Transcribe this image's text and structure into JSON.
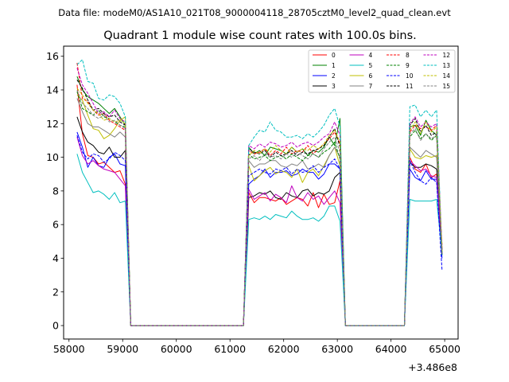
{
  "suptitle": "Data file: modeM0/AS1A10_021T08_9000004118_28705cztM0_level2_quad_clean.evt",
  "title": "Quadrant 1 module wise count rates with 100.0s bins.",
  "offset_label": "+3.486e8",
  "chart_data": {
    "type": "line",
    "title": "Quadrant 1 module wise count rates with 100.0s bins.",
    "xlabel": "",
    "ylabel": "",
    "x_offset": 348600000,
    "xlim": [
      57900,
      65250
    ],
    "ylim": [
      -0.8,
      16.6
    ],
    "xticks": [
      58000,
      59000,
      60000,
      61000,
      62000,
      63000,
      64000,
      65000
    ],
    "yticks": [
      0,
      2,
      4,
      6,
      8,
      10,
      12,
      14,
      16
    ],
    "grid": false,
    "legend_position": "top-right",
    "legend_columns": 4,
    "x": [
      58150,
      58250,
      58350,
      58450,
      58550,
      58650,
      58750,
      58850,
      58950,
      59050,
      59150,
      59250,
      59350,
      59450,
      59550,
      59650,
      59750,
      59850,
      59950,
      60050,
      60150,
      60250,
      60350,
      60450,
      60550,
      60650,
      60750,
      60850,
      60950,
      61050,
      61150,
      61250,
      61350,
      61450,
      61550,
      61650,
      61750,
      61850,
      61950,
      62050,
      62150,
      62250,
      62350,
      62450,
      62550,
      62650,
      62750,
      62850,
      62950,
      63050,
      63150,
      63250,
      63350,
      63450,
      63550,
      63650,
      63750,
      63850,
      63950,
      64050,
      64150,
      64250,
      64350,
      64450,
      64550,
      64650,
      64750,
      64850,
      64950
    ],
    "segments": [
      {
        "start": 58150,
        "end": 59050,
        "active": true
      },
      {
        "start": 59150,
        "end": 61250,
        "active": false
      },
      {
        "start": 61350,
        "end": 63050,
        "active": true
      },
      {
        "start": 63150,
        "end": 64250,
        "active": false
      },
      {
        "start": 64350,
        "end": 64950,
        "active": true
      }
    ],
    "series": [
      {
        "name": "0",
        "color": "#ff0000",
        "dash": "solid",
        "values": [
          14.3,
          11.4,
          10.1,
          10.0,
          9.6,
          9.7,
          9.4,
          9.1,
          9.2,
          8.4,
          0,
          0,
          0,
          0,
          0,
          0,
          0,
          0,
          0,
          0,
          0,
          0,
          0,
          0,
          0,
          0,
          0,
          0,
          0,
          0,
          0,
          0,
          7.9,
          7.3,
          7.6,
          7.6,
          7.5,
          7.4,
          7.6,
          7.2,
          7.4,
          7.6,
          7.5,
          7.1,
          7.9,
          7.0,
          7.8,
          7.2,
          7.3,
          8.6,
          0,
          0,
          0,
          0,
          0,
          0,
          0,
          0,
          0,
          0,
          0,
          0,
          10.0,
          9.3,
          9.1,
          9.6,
          8.8,
          9.0,
          4.8
        ]
      },
      {
        "name": "1",
        "color": "#008000",
        "dash": "solid",
        "values": [
          14.8,
          14.0,
          13.6,
          13.4,
          13.2,
          12.9,
          12.6,
          12.9,
          12.4,
          11.9,
          0,
          0,
          0,
          0,
          0,
          0,
          0,
          0,
          0,
          0,
          0,
          0,
          0,
          0,
          0,
          0,
          0,
          0,
          0,
          0,
          0,
          0,
          10.6,
          10.2,
          10.4,
          10.1,
          10.6,
          10.5,
          10.4,
          10.2,
          10.6,
          10.3,
          10.5,
          10.1,
          10.4,
          10.3,
          10.6,
          11.2,
          10.7,
          12.3,
          0,
          0,
          0,
          0,
          0,
          0,
          0,
          0,
          0,
          0,
          0,
          0,
          11.8,
          11.9,
          11.3,
          12.2,
          11.6,
          11.3,
          4.5
        ]
      },
      {
        "name": "2",
        "color": "#0000ff",
        "dash": "solid",
        "values": [
          11.5,
          10.6,
          9.4,
          10.0,
          9.5,
          9.4,
          10.0,
          10.2,
          9.6,
          9.5,
          0,
          0,
          0,
          0,
          0,
          0,
          0,
          0,
          0,
          0,
          0,
          0,
          0,
          0,
          0,
          0,
          0,
          0,
          0,
          0,
          0,
          0,
          8.4,
          8.7,
          8.9,
          9.3,
          8.8,
          9.1,
          9.1,
          9.2,
          8.9,
          9.0,
          9.3,
          9.1,
          9.1,
          8.7,
          9.0,
          9.6,
          9.6,
          9.3,
          0,
          0,
          0,
          0,
          0,
          0,
          0,
          0,
          0,
          0,
          0,
          0,
          9.3,
          8.8,
          8.6,
          9.2,
          8.7,
          8.7,
          4.0
        ]
      },
      {
        "name": "3",
        "color": "#000000",
        "dash": "solid",
        "values": [
          12.4,
          11.5,
          10.9,
          10.7,
          10.3,
          10.2,
          10.6,
          10.0,
          10.0,
          10.4,
          0,
          0,
          0,
          0,
          0,
          0,
          0,
          0,
          0,
          0,
          0,
          0,
          0,
          0,
          0,
          0,
          0,
          0,
          0,
          0,
          0,
          0,
          7.6,
          7.7,
          7.9,
          7.8,
          8.0,
          7.6,
          7.5,
          7.9,
          7.7,
          7.6,
          8.0,
          8.1,
          7.7,
          7.9,
          7.8,
          8.0,
          8.8,
          9.1,
          0,
          0,
          0,
          0,
          0,
          0,
          0,
          0,
          0,
          0,
          0,
          0,
          9.7,
          9.4,
          9.4,
          9.6,
          9.5,
          9.3,
          4.2
        ]
      },
      {
        "name": "4",
        "color": "#bf00bf",
        "dash": "solid",
        "values": [
          11.2,
          10.1,
          9.6,
          9.8,
          9.5,
          9.3,
          9.2,
          9.1,
          8.7,
          8.3,
          0,
          0,
          0,
          0,
          0,
          0,
          0,
          0,
          0,
          0,
          0,
          0,
          0,
          0,
          0,
          0,
          0,
          0,
          0,
          0,
          0,
          0,
          8.1,
          7.5,
          7.7,
          7.9,
          7.4,
          7.8,
          7.6,
          7.3,
          8.3,
          7.6,
          7.4,
          7.9,
          7.5,
          7.7,
          7.2,
          7.6,
          8.0,
          7.3,
          0,
          0,
          0,
          0,
          0,
          0,
          0,
          0,
          0,
          0,
          0,
          0,
          9.8,
          9.5,
          9.2,
          9.3,
          8.9,
          8.8,
          4.5
        ]
      },
      {
        "name": "5",
        "color": "#00bfbf",
        "dash": "solid",
        "values": [
          10.2,
          9.1,
          8.5,
          7.9,
          8.0,
          7.8,
          7.5,
          7.9,
          7.3,
          7.4,
          0,
          0,
          0,
          0,
          0,
          0,
          0,
          0,
          0,
          0,
          0,
          0,
          0,
          0,
          0,
          0,
          0,
          0,
          0,
          0,
          0,
          0,
          6.3,
          6.4,
          6.3,
          6.5,
          6.3,
          6.6,
          6.5,
          6.4,
          6.8,
          6.5,
          6.3,
          6.3,
          6.4,
          6.2,
          6.5,
          7.1,
          7.1,
          6.2,
          0,
          0,
          0,
          0,
          0,
          0,
          0,
          0,
          0,
          0,
          0,
          0,
          7.5,
          7.4,
          7.4,
          7.4,
          7.4,
          7.5,
          4.3
        ]
      },
      {
        "name": "6",
        "color": "#bfbf00",
        "dash": "solid",
        "values": [
          13.7,
          13.4,
          12.5,
          11.7,
          11.6,
          11.1,
          11.3,
          11.7,
          12.2,
          12.4,
          0,
          0,
          0,
          0,
          0,
          0,
          0,
          0,
          0,
          0,
          0,
          0,
          0,
          0,
          0,
          0,
          0,
          0,
          0,
          0,
          0,
          0,
          9.5,
          8.6,
          8.9,
          9.2,
          9.4,
          9.0,
          9.2,
          9.1,
          8.8,
          9.3,
          8.5,
          9.1,
          9.3,
          8.9,
          9.5,
          10.1,
          10.6,
          9.5,
          0,
          0,
          0,
          0,
          0,
          0,
          0,
          0,
          0,
          0,
          0,
          0,
          10.5,
          10.0,
          9.9,
          10.1,
          10.0,
          10.1,
          4.8
        ]
      },
      {
        "name": "7",
        "color": "#808080",
        "dash": "solid",
        "values": [
          13.5,
          12.7,
          12.0,
          11.8,
          11.8,
          11.6,
          11.4,
          11.2,
          11.5,
          11.2,
          0,
          0,
          0,
          0,
          0,
          0,
          0,
          0,
          0,
          0,
          0,
          0,
          0,
          0,
          0,
          0,
          0,
          0,
          0,
          0,
          0,
          0,
          9.8,
          9.4,
          9.6,
          9.6,
          9.8,
          9.8,
          9.5,
          9.4,
          9.6,
          9.5,
          9.8,
          9.3,
          9.4,
          9.6,
          9.4,
          10.1,
          10.6,
          10.0,
          0,
          0,
          0,
          0,
          0,
          0,
          0,
          0,
          0,
          0,
          0,
          0,
          10.6,
          10.3,
          10.0,
          10.4,
          10.2,
          10.0,
          4.6
        ]
      },
      {
        "name": "8",
        "color": "#ff0000",
        "dash": "dashed",
        "values": [
          15.6,
          13.5,
          13.3,
          12.8,
          12.5,
          12.6,
          12.2,
          12.0,
          11.8,
          11.6,
          0,
          0,
          0,
          0,
          0,
          0,
          0,
          0,
          0,
          0,
          0,
          0,
          0,
          0,
          0,
          0,
          0,
          0,
          0,
          0,
          0,
          0,
          10.4,
          10.2,
          10.3,
          10.5,
          10.1,
          10.4,
          10.2,
          10.6,
          10.2,
          10.4,
          10.3,
          10.7,
          10.2,
          10.5,
          10.8,
          11.1,
          11.5,
          10.8,
          0,
          0,
          0,
          0,
          0,
          0,
          0,
          0,
          0,
          0,
          0,
          0,
          11.5,
          11.9,
          11.7,
          11.8,
          11.6,
          11.9,
          4.3
        ]
      },
      {
        "name": "9",
        "color": "#008000",
        "dash": "dashed",
        "values": [
          13.9,
          12.9,
          12.7,
          12.5,
          12.8,
          12.4,
          12.3,
          12.1,
          11.9,
          11.8,
          0,
          0,
          0,
          0,
          0,
          0,
          0,
          0,
          0,
          0,
          0,
          0,
          0,
          0,
          0,
          0,
          0,
          0,
          0,
          0,
          0,
          0,
          10.2,
          9.9,
          10.0,
          10.1,
          9.8,
          10.0,
          10.1,
          9.9,
          10.2,
          10.0,
          9.8,
          10.1,
          10.2,
          10.0,
          10.3,
          10.5,
          10.9,
          9.9,
          0,
          0,
          0,
          0,
          0,
          0,
          0,
          0,
          0,
          0,
          0,
          0,
          11.2,
          11.6,
          11.1,
          11.4,
          11.0,
          11.3,
          4.4
        ]
      },
      {
        "name": "10",
        "color": "#0000ff",
        "dash": "dashed",
        "values": [
          11.3,
          10.3,
          9.9,
          10.2,
          10.1,
          9.7,
          9.9,
          10.3,
          10.1,
          9.8,
          0,
          0,
          0,
          0,
          0,
          0,
          0,
          0,
          0,
          0,
          0,
          0,
          0,
          0,
          0,
          0,
          0,
          0,
          0,
          0,
          0,
          0,
          8.9,
          9.1,
          9.3,
          9.1,
          9.0,
          9.3,
          9.2,
          9.4,
          9.0,
          9.3,
          9.1,
          9.2,
          9.5,
          9.1,
          9.4,
          9.6,
          9.9,
          9.3,
          0,
          0,
          0,
          0,
          0,
          0,
          0,
          0,
          0,
          0,
          0,
          0,
          9.8,
          9.1,
          8.6,
          8.4,
          8.8,
          8.5,
          3.3
        ]
      },
      {
        "name": "11",
        "color": "#000000",
        "dash": "dashed",
        "values": [
          14.6,
          14.1,
          13.4,
          12.8,
          12.9,
          12.6,
          12.4,
          12.5,
          12.1,
          11.9,
          0,
          0,
          0,
          0,
          0,
          0,
          0,
          0,
          0,
          0,
          0,
          0,
          0,
          0,
          0,
          0,
          0,
          0,
          0,
          0,
          0,
          0,
          10.5,
          10.3,
          10.2,
          10.4,
          10.0,
          10.3,
          10.1,
          10.2,
          10.4,
          10.1,
          10.3,
          10.2,
          10.4,
          10.5,
          10.7,
          11.2,
          11.7,
          10.6,
          0,
          0,
          0,
          0,
          0,
          0,
          0,
          0,
          0,
          0,
          0,
          0,
          11.9,
          12.3,
          11.5,
          11.9,
          11.3,
          11.5,
          4.2
        ]
      },
      {
        "name": "12",
        "color": "#bf00bf",
        "dash": "dashed",
        "values": [
          15.3,
          14.3,
          13.8,
          13.2,
          12.6,
          12.7,
          12.4,
          12.8,
          12.3,
          12.1,
          0,
          0,
          0,
          0,
          0,
          0,
          0,
          0,
          0,
          0,
          0,
          0,
          0,
          0,
          0,
          0,
          0,
          0,
          0,
          0,
          0,
          0,
          10.7,
          10.5,
          10.8,
          10.6,
          10.9,
          10.8,
          10.6,
          10.7,
          10.9,
          10.6,
          10.8,
          10.9,
          10.7,
          10.9,
          11.2,
          11.4,
          12.1,
          11.3,
          0,
          0,
          0,
          0,
          0,
          0,
          0,
          0,
          0,
          0,
          0,
          0,
          12.0,
          12.4,
          11.8,
          12.1,
          11.8,
          12.0,
          4.6
        ]
      },
      {
        "name": "13",
        "color": "#00bfbf",
        "dash": "dashed",
        "values": [
          15.5,
          15.8,
          14.5,
          14.4,
          13.5,
          13.4,
          13.7,
          13.6,
          13.2,
          12.4,
          0,
          0,
          0,
          0,
          0,
          0,
          0,
          0,
          0,
          0,
          0,
          0,
          0,
          0,
          0,
          0,
          0,
          0,
          0,
          0,
          0,
          0,
          10.7,
          11.2,
          11.6,
          11.5,
          12.1,
          11.6,
          11.5,
          11.2,
          11.2,
          11.3,
          11.1,
          11.4,
          11.2,
          11.5,
          11.9,
          12.5,
          12.9,
          11.8,
          0,
          0,
          0,
          0,
          0,
          0,
          0,
          0,
          0,
          0,
          0,
          0,
          13.0,
          13.1,
          12.4,
          12.8,
          12.4,
          12.8,
          4.2
        ]
      },
      {
        "name": "14",
        "color": "#bfbf00",
        "dash": "dashed",
        "values": [
          14.1,
          13.7,
          13.2,
          12.8,
          12.6,
          12.2,
          12.3,
          12.1,
          12.2,
          12.0,
          0,
          0,
          0,
          0,
          0,
          0,
          0,
          0,
          0,
          0,
          0,
          0,
          0,
          0,
          0,
          0,
          0,
          0,
          0,
          0,
          0,
          0,
          10.1,
          10.4,
          10.2,
          10.5,
          10.3,
          10.7,
          10.4,
          10.2,
          10.6,
          10.3,
          10.5,
          10.4,
          10.7,
          10.5,
          10.8,
          11.3,
          11.6,
          10.9,
          0,
          0,
          0,
          0,
          0,
          0,
          0,
          0,
          0,
          0,
          0,
          0,
          11.6,
          12.1,
          11.4,
          12.1,
          11.5,
          11.8,
          4.4
        ]
      },
      {
        "name": "15",
        "color": "#808080",
        "dash": "dashed",
        "values": [
          14.0,
          13.2,
          12.9,
          12.5,
          12.3,
          12.5,
          12.1,
          12.2,
          11.9,
          11.7,
          0,
          0,
          0,
          0,
          0,
          0,
          0,
          0,
          0,
          0,
          0,
          0,
          0,
          0,
          0,
          0,
          0,
          0,
          0,
          0,
          0,
          0,
          9.9,
          10.1,
          9.8,
          10.2,
          10.0,
          10.1,
          9.9,
          10.2,
          10.0,
          10.3,
          10.1,
          9.9,
          10.2,
          10.0,
          10.5,
          10.9,
          11.2,
          10.3,
          0,
          0,
          0,
          0,
          0,
          0,
          0,
          0,
          0,
          0,
          0,
          0,
          11.4,
          11.7,
          11.0,
          11.4,
          11.1,
          11.3,
          4.3
        ]
      }
    ]
  }
}
